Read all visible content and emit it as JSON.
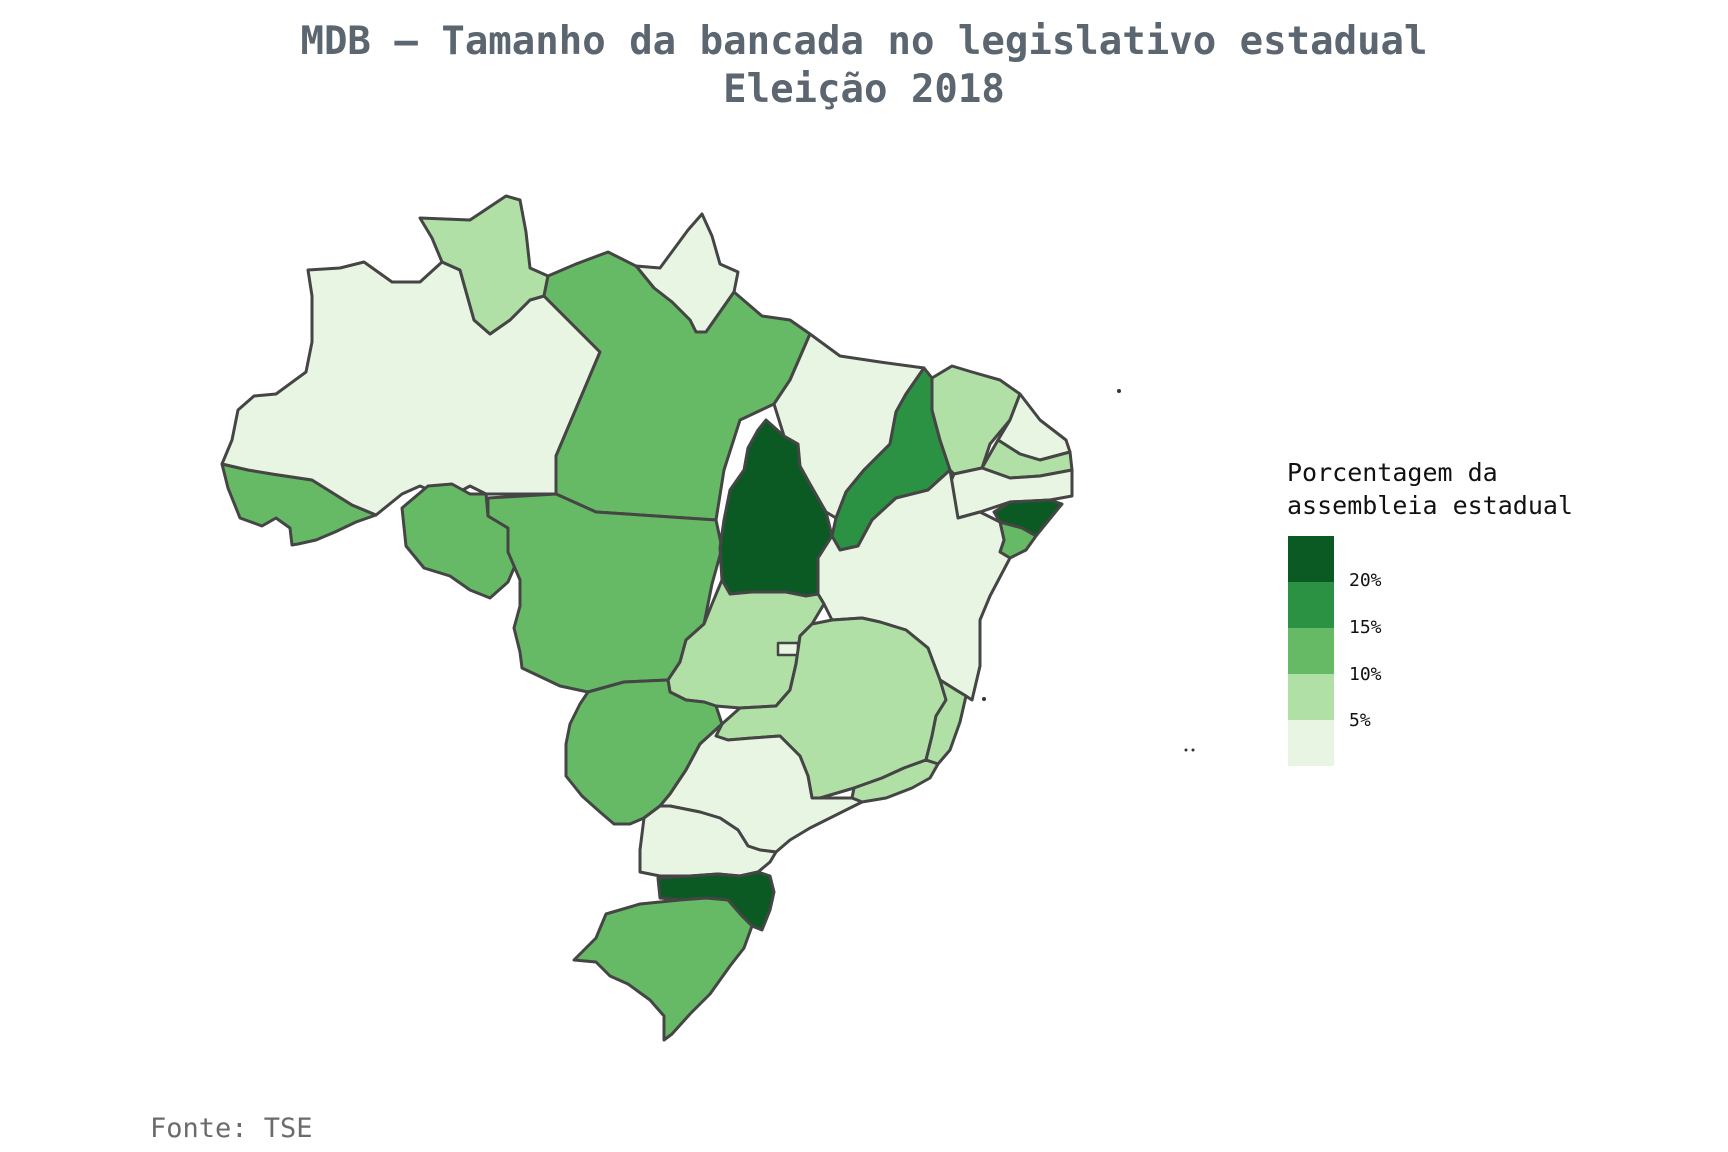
{
  "title_line1": "MDB – Tamanho da bancada no legislativo estadual",
  "title_line2": "Eleição 2018",
  "legend": {
    "title": "Porcentagem da\nassembleia estadual",
    "labels": [
      "20%",
      "15%",
      "10%",
      "5%"
    ],
    "colors": [
      "#0b5a24",
      "#2b9244",
      "#66ba65",
      "#b0e0a6",
      "#e9f5e3"
    ]
  },
  "source": "Fonte: TSE",
  "map_data": {
    "type": "choropleth",
    "metric": "Porcentagem da assembleia estadual",
    "bins": [
      {
        "range": "<5%",
        "color": "#e9f5e3",
        "states": [
          "AM",
          "AP",
          "MA",
          "BA",
          "SP",
          "PR",
          "RN",
          "PE",
          "DF"
        ]
      },
      {
        "range": "5–10%",
        "color": "#b0e0a6",
        "states": [
          "RR",
          "GO",
          "MG",
          "ES",
          "RJ",
          "CE",
          "PB"
        ]
      },
      {
        "range": "10–15%",
        "color": "#66ba65",
        "states": [
          "PA",
          "MT",
          "RO",
          "AC",
          "MS",
          "RS",
          "SE"
        ]
      },
      {
        "range": "15–20%",
        "color": "#2b9244",
        "states": [
          "PI"
        ]
      },
      {
        "range": ">20%",
        "color": "#0b5a24",
        "states": [
          "TO",
          "SC",
          "AL"
        ]
      }
    ]
  }
}
